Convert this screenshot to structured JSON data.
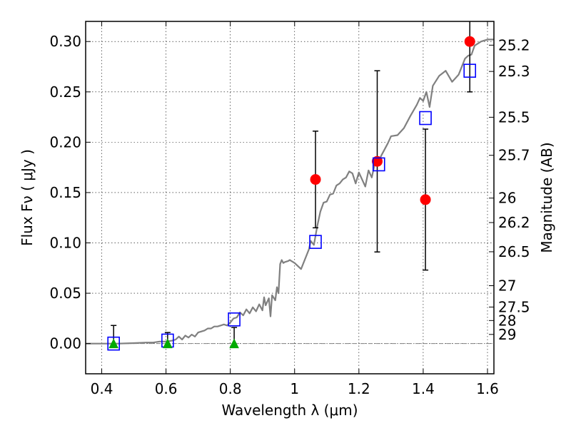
{
  "chart_data": {
    "type": "scatter",
    "xlabel": "Wavelength  λ (μm)",
    "ylabel": "Flux  Fν  ( μJy )",
    "y2label": "Magnitude (AB)",
    "xlim": [
      0.35,
      1.62
    ],
    "ylim": [
      -0.03,
      0.32
    ],
    "grid": true,
    "grid_style": "dotted",
    "x_ticks": [
      {
        "value": 0.4,
        "label": "0.4"
      },
      {
        "value": 0.6,
        "label": "0.6"
      },
      {
        "value": 0.8,
        "label": "0.8"
      },
      {
        "value": 1.0,
        "label": "1"
      },
      {
        "value": 1.2,
        "label": "1.2"
      },
      {
        "value": 1.4,
        "label": "1.4"
      },
      {
        "value": 1.6,
        "label": "1.6"
      }
    ],
    "y_ticks": [
      {
        "value": 0.0,
        "label": "0.00"
      },
      {
        "value": 0.05,
        "label": "0.05"
      },
      {
        "value": 0.1,
        "label": "0.10"
      },
      {
        "value": 0.15,
        "label": "0.15"
      },
      {
        "value": 0.2,
        "label": "0.20"
      },
      {
        "value": 0.25,
        "label": "0.25"
      },
      {
        "value": 0.3,
        "label": "0.30"
      }
    ],
    "mag_ticks": [
      {
        "value": 0.2964,
        "label": "25.2"
      },
      {
        "value": 0.2703,
        "label": "25.3"
      },
      {
        "value": 0.2248,
        "label": "25.5"
      },
      {
        "value": 0.187,
        "label": "25.7"
      },
      {
        "value": 0.1445,
        "label": "26"
      },
      {
        "value": 0.1202,
        "label": "26.2"
      },
      {
        "value": 0.0912,
        "label": "26.5"
      },
      {
        "value": 0.0575,
        "label": "27"
      },
      {
        "value": 0.0363,
        "label": "27.5"
      },
      {
        "value": 0.0229,
        "label": "28"
      },
      {
        "value": 0.0091,
        "label": "29"
      }
    ],
    "series": [
      {
        "kind": "line",
        "color": "#808080",
        "x": [
          0.35,
          0.4,
          0.45,
          0.5,
          0.54,
          0.56,
          0.58,
          0.6,
          0.62,
          0.63,
          0.64,
          0.65,
          0.66,
          0.67,
          0.68,
          0.69,
          0.7,
          0.71,
          0.72,
          0.73,
          0.74,
          0.75,
          0.76,
          0.77,
          0.78,
          0.79,
          0.8,
          0.81,
          0.82,
          0.83,
          0.84,
          0.85,
          0.86,
          0.87,
          0.88,
          0.89,
          0.9,
          0.905,
          0.91,
          0.92,
          0.925,
          0.93,
          0.94,
          0.945,
          0.95,
          0.955,
          0.96,
          0.965,
          0.97,
          0.98,
          0.985,
          0.99,
          1.0,
          1.02,
          1.04,
          1.045,
          1.05,
          1.06,
          1.07,
          1.08,
          1.09,
          1.1,
          1.11,
          1.12,
          1.13,
          1.14,
          1.15,
          1.16,
          1.17,
          1.18,
          1.19,
          1.2,
          1.21,
          1.22,
          1.23,
          1.24,
          1.25,
          1.26,
          1.27,
          1.28,
          1.29,
          1.3,
          1.32,
          1.34,
          1.36,
          1.38,
          1.39,
          1.4,
          1.41,
          1.42,
          1.43,
          1.45,
          1.47,
          1.49,
          1.51,
          1.53,
          1.54,
          1.55,
          1.56,
          1.58,
          1.6,
          1.62
        ],
        "y": [
          0.0,
          0.0,
          0.0,
          0.0005,
          0.001,
          0.001,
          0.002,
          0.002,
          0.003,
          0.004,
          0.007,
          0.004,
          0.008,
          0.006,
          0.009,
          0.007,
          0.011,
          0.012,
          0.013,
          0.015,
          0.015,
          0.017,
          0.017,
          0.018,
          0.019,
          0.018,
          0.021,
          0.025,
          0.026,
          0.031,
          0.028,
          0.034,
          0.03,
          0.036,
          0.032,
          0.039,
          0.033,
          0.046,
          0.038,
          0.045,
          0.027,
          0.048,
          0.043,
          0.056,
          0.05,
          0.079,
          0.083,
          0.08,
          0.081,
          0.082,
          0.083,
          0.082,
          0.08,
          0.074,
          0.09,
          0.094,
          0.102,
          0.098,
          0.116,
          0.131,
          0.14,
          0.141,
          0.148,
          0.149,
          0.157,
          0.159,
          0.163,
          0.165,
          0.171,
          0.169,
          0.159,
          0.17,
          0.163,
          0.156,
          0.172,
          0.165,
          0.18,
          0.18,
          0.187,
          0.193,
          0.199,
          0.206,
          0.207,
          0.214,
          0.226,
          0.237,
          0.244,
          0.241,
          0.25,
          0.235,
          0.256,
          0.266,
          0.271,
          0.26,
          0.267,
          0.283,
          0.286,
          0.287,
          0.296,
          0.3,
          0.302,
          0.302
        ]
      },
      {
        "kind": "markers",
        "marker": "circle",
        "color": "#ff0000",
        "x": [
          1.065,
          1.257,
          1.407,
          1.545
        ],
        "y": [
          0.163,
          0.181,
          0.143,
          0.3
        ],
        "yerr": [
          0.048,
          0.09,
          0.07,
          0.05
        ]
      },
      {
        "kind": "markers",
        "marker": "square",
        "color": "#0000ff",
        "x": [
          0.437,
          0.605,
          0.812,
          1.065,
          1.262,
          1.407,
          1.545
        ],
        "y": [
          0.0,
          0.003,
          0.024,
          0.101,
          0.178,
          0.224,
          0.271
        ]
      },
      {
        "kind": "markers",
        "marker": "triangle",
        "color": "#00aa00",
        "x": [
          0.437,
          0.605,
          0.812
        ],
        "y": [
          0.0,
          0.0,
          0.0
        ],
        "yerr_upper": [
          0.018,
          0.011,
          0.016
        ]
      }
    ],
    "zero_line": {
      "y": 0.0,
      "style": "dash-dot",
      "color": "#808080"
    }
  }
}
